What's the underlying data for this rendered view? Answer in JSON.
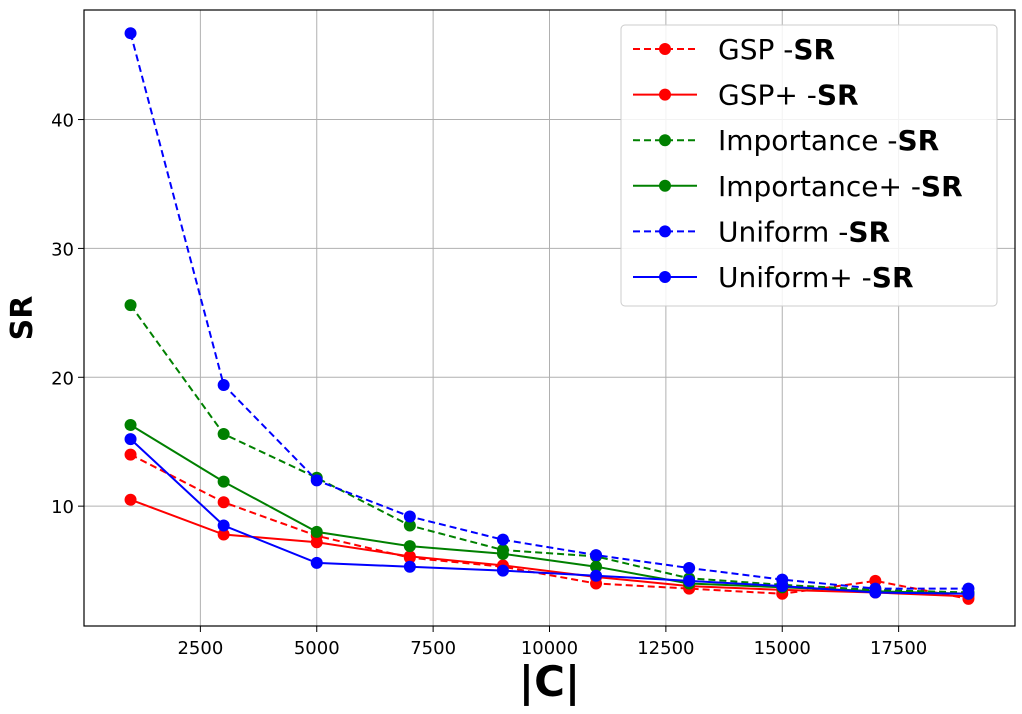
{
  "chart_data": {
    "type": "line",
    "title": "",
    "xlabel": "|C|",
    "ylabel": "SR",
    "xlim": [
      0,
      20000
    ],
    "ylim": [
      0.7,
      48.5
    ],
    "x_ticks": [
      2500,
      5000,
      7500,
      10000,
      12500,
      15000,
      17500
    ],
    "y_ticks": [
      10,
      20,
      30,
      40
    ],
    "grid": true,
    "legend_position": "top-right",
    "x": [
      1000,
      3000,
      5000,
      7000,
      9000,
      11000,
      13000,
      15000,
      17000,
      19000
    ],
    "series": [
      {
        "name_prefix": "GSP -",
        "name_suffix": "SR",
        "color": "#ff0000",
        "dashed": true,
        "values": [
          14.0,
          10.3,
          7.7,
          6.0,
          5.3,
          4.0,
          3.6,
          3.2,
          4.2,
          2.8
        ]
      },
      {
        "name_prefix": "GSP+ -",
        "name_suffix": "SR",
        "color": "#ff0000",
        "dashed": false,
        "values": [
          10.5,
          7.8,
          7.2,
          6.1,
          5.4,
          4.5,
          3.8,
          3.5,
          3.3,
          3.0
        ]
      },
      {
        "name_prefix": "Importance -",
        "name_suffix": "SR",
        "color": "#008000",
        "dashed": true,
        "values": [
          25.6,
          15.6,
          12.2,
          8.5,
          6.6,
          6.1,
          4.4,
          3.9,
          3.5,
          3.3
        ]
      },
      {
        "name_prefix": "Importance+ -",
        "name_suffix": "SR",
        "color": "#008000",
        "dashed": false,
        "values": [
          16.3,
          11.9,
          8.0,
          6.9,
          6.3,
          5.3,
          4.0,
          3.7,
          3.4,
          3.2
        ]
      },
      {
        "name_prefix": "Uniform -",
        "name_suffix": "SR",
        "color": "#0000ff",
        "dashed": true,
        "values": [
          46.7,
          19.4,
          12.0,
          9.2,
          7.4,
          6.2,
          5.2,
          4.3,
          3.6,
          3.6
        ]
      },
      {
        "name_prefix": "Uniform+ -",
        "name_suffix": "SR",
        "color": "#0000ff",
        "dashed": false,
        "values": [
          15.2,
          8.5,
          5.6,
          5.3,
          5.0,
          4.6,
          4.2,
          3.8,
          3.3,
          3.2
        ]
      }
    ]
  }
}
